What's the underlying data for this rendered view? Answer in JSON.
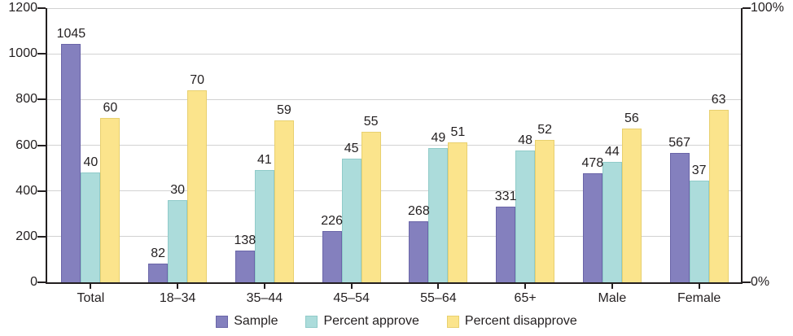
{
  "chart_data": {
    "type": "bar",
    "title": "",
    "categories": [
      "Total",
      "18–34",
      "35–44",
      "45–54",
      "55–64",
      "65+",
      "Male",
      "Female"
    ],
    "series": [
      {
        "name": "Sample",
        "axis": "left",
        "color": "#8480be",
        "border_color": "#6a65a8",
        "values": [
          1045,
          82,
          138,
          226,
          268,
          331,
          478,
          567
        ]
      },
      {
        "name": "Percent approve",
        "axis": "right",
        "color": "#acdcdb",
        "border_color": "#90cbc9",
        "values": [
          40,
          30,
          41,
          45,
          49,
          48,
          44,
          37
        ]
      },
      {
        "name": "Percent disapprove",
        "axis": "right",
        "color": "#fbe48c",
        "border_color": "#e8d06f",
        "values": [
          60,
          70,
          59,
          55,
          51,
          52,
          56,
          63
        ]
      }
    ],
    "left_axis": {
      "min": 0,
      "max": 1200,
      "tick_step": 200,
      "tick_labels": [
        "0",
        "200",
        "400",
        "600",
        "800",
        "1000",
        "1200"
      ]
    },
    "right_axis": {
      "min": 0,
      "max": 100,
      "tick_labels": [
        "0%",
        "100%"
      ]
    },
    "grid": true,
    "legend_position": "bottom",
    "colors": {
      "axis": "#231f20",
      "gridline": "#d2d2d2",
      "text": "#231f20",
      "background": "#ffffff"
    }
  }
}
